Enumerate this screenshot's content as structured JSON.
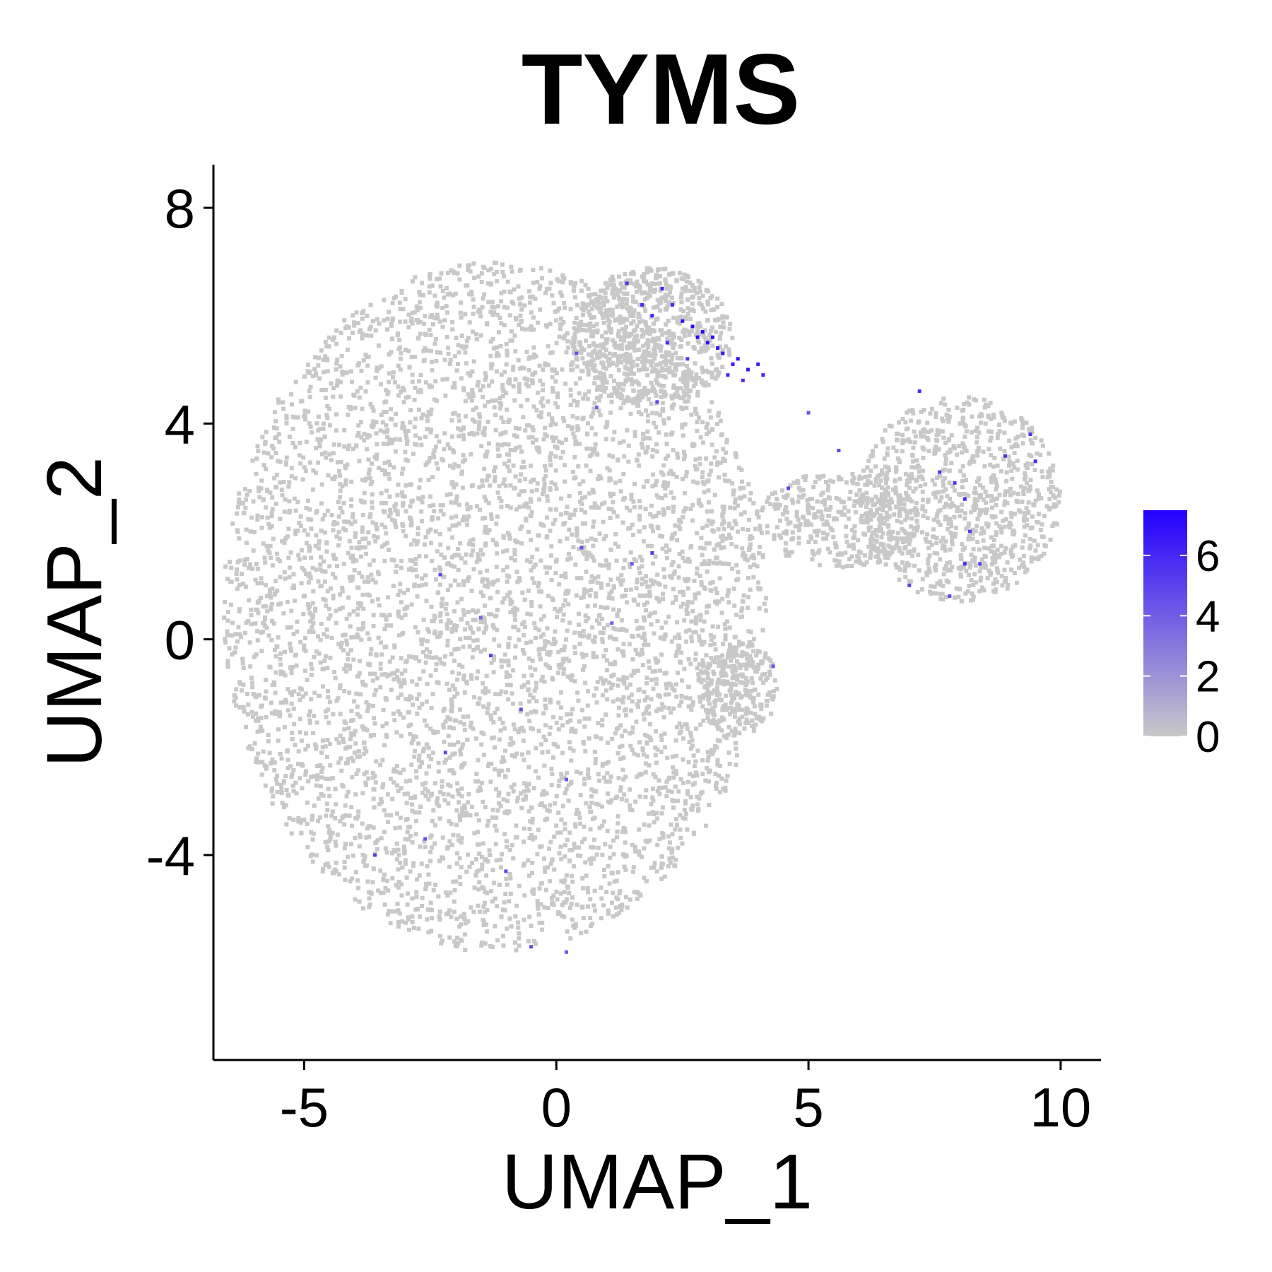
{
  "chart_data": {
    "type": "scatter",
    "title": "TYMS",
    "xlabel": "UMAP_1",
    "ylabel": "UMAP_2",
    "xlim": [
      -6.8,
      10.8
    ],
    "ylim": [
      -7.8,
      8.8
    ],
    "x_ticks": [
      -5,
      0,
      5,
      10
    ],
    "y_ticks": [
      -4,
      0,
      4,
      8
    ],
    "x_tick_labels": [
      "-5",
      "0",
      "5",
      "10"
    ],
    "y_tick_labels": [
      "-4",
      "0",
      "4",
      "8"
    ],
    "grid": false,
    "legend": {
      "type": "colorbar",
      "placement": "right",
      "min": 0,
      "max": 7.5,
      "ticks": [
        0,
        2,
        4,
        6
      ],
      "tick_labels": [
        "0",
        "2",
        "4",
        "6"
      ],
      "low_color": "#c8c8c8",
      "high_color": "#2400ff"
    },
    "background_color": "#c8c8c8",
    "clusters": [
      {
        "name": "main-cluster",
        "cx": -1.2,
        "cy": 0.6,
        "rx": 5.4,
        "ry": 6.4
      },
      {
        "name": "top-lobe",
        "cx": 1.9,
        "cy": 5.6,
        "rx": 1.6,
        "ry": 1.3
      },
      {
        "name": "right-cluster",
        "cx": 8.0,
        "cy": 2.6,
        "rx": 2.0,
        "ry": 1.9
      },
      {
        "name": "bridge",
        "cx": 5.6,
        "cy": 2.2,
        "rx": 1.6,
        "ry": 0.9
      },
      {
        "name": "lower-blob",
        "cx": 3.6,
        "cy": -0.9,
        "rx": 0.8,
        "ry": 0.9
      }
    ],
    "expressing_points": [
      {
        "x": 1.4,
        "y": 6.6,
        "value": 5.5
      },
      {
        "x": 1.7,
        "y": 6.2,
        "value": 5.8
      },
      {
        "x": 2.1,
        "y": 6.5,
        "value": 6.2
      },
      {
        "x": 2.3,
        "y": 6.2,
        "value": 6.0
      },
      {
        "x": 2.5,
        "y": 5.9,
        "value": 6.8
      },
      {
        "x": 2.7,
        "y": 5.8,
        "value": 7.0
      },
      {
        "x": 2.8,
        "y": 5.6,
        "value": 7.2
      },
      {
        "x": 2.9,
        "y": 5.7,
        "value": 7.1
      },
      {
        "x": 3.0,
        "y": 5.5,
        "value": 6.9
      },
      {
        "x": 3.1,
        "y": 5.6,
        "value": 7.0
      },
      {
        "x": 3.2,
        "y": 5.4,
        "value": 6.8
      },
      {
        "x": 3.3,
        "y": 5.3,
        "value": 6.5
      },
      {
        "x": 3.5,
        "y": 5.1,
        "value": 6.7
      },
      {
        "x": 3.6,
        "y": 5.2,
        "value": 6.9
      },
      {
        "x": 3.8,
        "y": 5.0,
        "value": 6.6
      },
      {
        "x": 4.0,
        "y": 5.1,
        "value": 6.4
      },
      {
        "x": 4.1,
        "y": 4.9,
        "value": 6.2
      },
      {
        "x": 2.6,
        "y": 5.2,
        "value": 5.5
      },
      {
        "x": 2.2,
        "y": 5.5,
        "value": 5.9
      },
      {
        "x": 1.9,
        "y": 6.0,
        "value": 6.1
      },
      {
        "x": 3.4,
        "y": 4.9,
        "value": 6.0
      },
      {
        "x": 3.7,
        "y": 4.8,
        "value": 5.7
      },
      {
        "x": 0.4,
        "y": 5.3,
        "value": 4.5
      },
      {
        "x": 2.0,
        "y": 4.4,
        "value": 4.8
      },
      {
        "x": 0.8,
        "y": 4.3,
        "value": 3.9
      },
      {
        "x": 1.9,
        "y": 1.6,
        "value": 5.2
      },
      {
        "x": 1.5,
        "y": 1.4,
        "value": 4.2
      },
      {
        "x": 0.5,
        "y": 1.7,
        "value": 4.5
      },
      {
        "x": -2.3,
        "y": 1.2,
        "value": 5.0
      },
      {
        "x": -1.5,
        "y": 0.4,
        "value": 3.6
      },
      {
        "x": -1.3,
        "y": -0.3,
        "value": 5.1
      },
      {
        "x": -0.7,
        "y": -1.3,
        "value": 4.6
      },
      {
        "x": -2.2,
        "y": -2.1,
        "value": 4.8
      },
      {
        "x": 0.2,
        "y": -2.6,
        "value": 4.3
      },
      {
        "x": -3.6,
        "y": -4.0,
        "value": 5.3
      },
      {
        "x": -1.0,
        "y": -4.3,
        "value": 4.9
      },
      {
        "x": -2.6,
        "y": -3.7,
        "value": 4.4
      },
      {
        "x": 0.2,
        "y": -5.8,
        "value": 4.1
      },
      {
        "x": -0.5,
        "y": -5.7,
        "value": 4.7
      },
      {
        "x": 1.1,
        "y": 0.3,
        "value": 3.9
      },
      {
        "x": 7.2,
        "y": 4.6,
        "value": 5.8
      },
      {
        "x": 7.6,
        "y": 3.1,
        "value": 5.4
      },
      {
        "x": 7.9,
        "y": 2.9,
        "value": 5.6
      },
      {
        "x": 8.1,
        "y": 2.6,
        "value": 6.1
      },
      {
        "x": 8.1,
        "y": 1.4,
        "value": 5.9
      },
      {
        "x": 8.2,
        "y": 2.0,
        "value": 5.2
      },
      {
        "x": 8.4,
        "y": 1.4,
        "value": 5.3
      },
      {
        "x": 8.9,
        "y": 3.4,
        "value": 5.7
      },
      {
        "x": 9.4,
        "y": 3.8,
        "value": 5.5
      },
      {
        "x": 9.5,
        "y": 3.3,
        "value": 6.0
      },
      {
        "x": 7.0,
        "y": 1.0,
        "value": 5.0
      },
      {
        "x": 7.8,
        "y": 0.8,
        "value": 4.6
      },
      {
        "x": 5.0,
        "y": 4.2,
        "value": 4.5
      },
      {
        "x": 5.6,
        "y": 3.5,
        "value": 4.7
      },
      {
        "x": 4.6,
        "y": 2.8,
        "value": 4.9
      },
      {
        "x": 4.3,
        "y": -0.5,
        "value": 4.2
      }
    ]
  }
}
